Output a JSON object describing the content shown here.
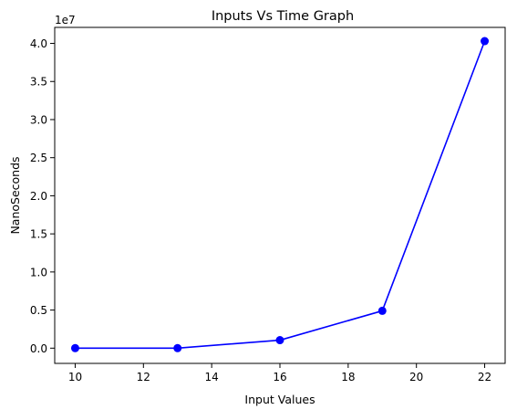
{
  "chart_data": {
    "type": "line",
    "title": "Inputs Vs Time Graph",
    "xlabel": "Input Values",
    "ylabel": "NanoSeconds",
    "y_offset_label": "1e7",
    "xlim": [
      9.4,
      22.6
    ],
    "ylim": [
      -2000000,
      42100000
    ],
    "x_ticks": [
      10,
      12,
      14,
      16,
      18,
      20,
      22
    ],
    "x_tick_labels": [
      "10",
      "12",
      "14",
      "16",
      "18",
      "20",
      "22"
    ],
    "y_ticks": [
      0,
      5000000,
      10000000,
      15000000,
      20000000,
      25000000,
      30000000,
      35000000,
      40000000
    ],
    "y_tick_labels": [
      "0.0",
      "0.5",
      "1.0",
      "1.5",
      "2.0",
      "2.5",
      "3.0",
      "3.5",
      "4.0"
    ],
    "grid": false,
    "series": [
      {
        "color": "#0000ff",
        "marker": "circle",
        "x": [
          10,
          13,
          16,
          19,
          22
        ],
        "y": [
          0,
          0,
          1050000,
          4900000,
          40300000
        ]
      }
    ]
  }
}
